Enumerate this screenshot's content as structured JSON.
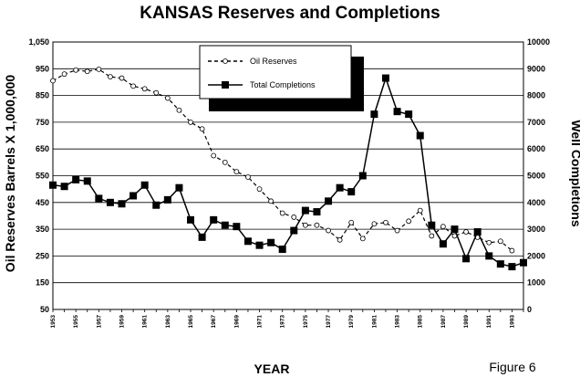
{
  "chart_data": {
    "type": "line",
    "title": "KANSAS Reserves and Completions",
    "xlabel": "YEAR",
    "ylabel_left": "Oil Reserves Barrels X 1,000,000",
    "ylabel_right": "Well Completions",
    "figure_label": "Figure 6",
    "ylim_left": [
      50,
      1050
    ],
    "ylim_right": [
      0,
      10000
    ],
    "left_ticks": [
      "1,050",
      "950",
      "850",
      "750",
      "650",
      "550",
      "450",
      "350",
      "250",
      "150",
      "50"
    ],
    "right_ticks": [
      "10000",
      "9000",
      "8000",
      "7000",
      "6000",
      "5000",
      "4000",
      "3000",
      "2000",
      "1000",
      "0"
    ],
    "x_tick_labels": [
      "1953",
      "1955",
      "1957",
      "1959",
      "1961",
      "1963",
      "1965",
      "1967",
      "1969",
      "1971",
      "1973",
      "1975",
      "1977",
      "1979",
      "1981",
      "1983",
      "1985",
      "1987",
      "1989",
      "1991",
      "1993"
    ],
    "x": [
      1953,
      1954,
      1955,
      1956,
      1957,
      1958,
      1959,
      1960,
      1961,
      1962,
      1963,
      1964,
      1965,
      1966,
      1967,
      1968,
      1969,
      1970,
      1971,
      1972,
      1973,
      1974,
      1975,
      1976,
      1977,
      1978,
      1979,
      1980,
      1981,
      1982,
      1983,
      1984,
      1985,
      1986,
      1987,
      1988,
      1989,
      1990,
      1991,
      1992,
      1993,
      1994
    ],
    "grid": true,
    "legend_position": "top-center",
    "series": [
      {
        "name": "Oil Reserves",
        "axis": "left",
        "style": "dashed",
        "marker": "open-circle",
        "values": [
          905,
          930,
          945,
          940,
          948,
          920,
          915,
          885,
          875,
          860,
          840,
          795,
          750,
          725,
          625,
          600,
          565,
          545,
          500,
          455,
          410,
          395,
          365,
          365,
          345,
          310,
          375,
          315,
          370,
          375,
          345,
          380,
          420,
          325,
          360,
          325,
          340,
          320,
          300,
          305,
          270,
          null
        ]
      },
      {
        "name": "Total Completions",
        "axis": "right",
        "style": "solid",
        "marker": "filled-square",
        "values": [
          4650,
          4600,
          4850,
          4800,
          4150,
          4000,
          3950,
          4250,
          4650,
          3900,
          4100,
          4550,
          3350,
          2700,
          3350,
          3150,
          3100,
          2550,
          2400,
          2500,
          2250,
          2950,
          3700,
          3650,
          4050,
          4550,
          4400,
          5000,
          7300,
          8650,
          7400,
          7300,
          6500,
          3150,
          2450,
          3000,
          1900,
          2900,
          2000,
          1700,
          1600,
          1750
        ]
      }
    ]
  },
  "colors": {
    "background": "#ffffff",
    "lines": "#000000",
    "legend_shadow": "#000000"
  }
}
